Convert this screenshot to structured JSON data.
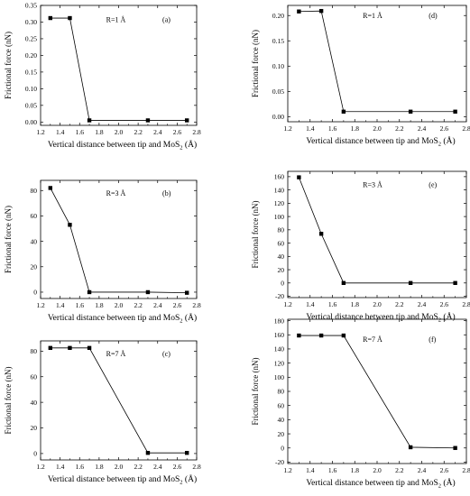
{
  "chart_data": [
    {
      "type": "line",
      "panel": "(a)",
      "annotation": "R=1 Å",
      "x": [
        1.3,
        1.5,
        1.7,
        2.3,
        2.7
      ],
      "series": [
        {
          "values": [
            0.312,
            0.312,
            0.005,
            0.005,
            0.005
          ]
        }
      ],
      "xlim": [
        1.2,
        2.8
      ],
      "ylim": [
        -0.01,
        0.35
      ],
      "xticks": [
        "1.2",
        "1.4",
        "1.6",
        "1.8",
        "2.0",
        "2.2",
        "2.4",
        "2.6",
        "2.8"
      ],
      "yticks": [
        "0.00",
        "0.05",
        "0.10",
        "0.15",
        "0.20",
        "0.25",
        "0.30",
        "0.35"
      ],
      "xlabel": "Vertical distance between tip and MoS",
      "xlabel_sub": "2",
      "xlabel_unit": " (Å)",
      "ylabel": "Frictional force (nN)"
    },
    {
      "type": "line",
      "panel": "(d)",
      "annotation": "R=1 Å",
      "x": [
        1.3,
        1.5,
        1.7,
        2.3,
        2.7
      ],
      "series": [
        {
          "values": [
            0.208,
            0.209,
            0.01,
            0.01,
            0.01
          ]
        }
      ],
      "xlim": [
        1.2,
        2.8
      ],
      "ylim": [
        -0.01,
        0.22
      ],
      "xticks": [
        "1.2",
        "1.4",
        "1.6",
        "1.8",
        "2.0",
        "2.2",
        "2.4",
        "2.6",
        "2.8"
      ],
      "yticks": [
        "0.00",
        "0.05",
        "0.10",
        "0.15",
        "0.20"
      ],
      "xlabel": "Vertical distance between tip and MoS",
      "xlabel_sub": "2",
      "xlabel_unit": " (Å)",
      "ylabel": "Frictional force (nN)"
    },
    {
      "type": "line",
      "panel": "(b)",
      "annotation": "R=3 Å",
      "x": [
        1.3,
        1.5,
        1.7,
        2.3,
        2.7
      ],
      "series": [
        {
          "values": [
            82,
            53,
            0,
            0,
            -0.5
          ]
        }
      ],
      "xlim": [
        1.2,
        2.8
      ],
      "ylim": [
        -5,
        88
      ],
      "xticks": [
        "1.2",
        "1.4",
        "1.6",
        "1.8",
        "2.0",
        "2.2",
        "2.4",
        "2.6",
        "2.8"
      ],
      "yticks": [
        "0",
        "20",
        "40",
        "60",
        "80"
      ],
      "xlabel": "Vertical distance between tip and MoS",
      "xlabel_sub": "2",
      "xlabel_unit": " (Å)",
      "ylabel": "Frictional force (nN)"
    },
    {
      "type": "line",
      "panel": "(e)",
      "annotation": "R=3 Å",
      "x": [
        1.3,
        1.5,
        1.7,
        2.3,
        2.7
      ],
      "series": [
        {
          "values": [
            159,
            74,
            0,
            0,
            0
          ]
        }
      ],
      "xlim": [
        1.2,
        2.8
      ],
      "ylim": [
        -22,
        168
      ],
      "xticks": [
        "1.2",
        "1.4",
        "1.6",
        "1.8",
        "2.0",
        "2.2",
        "2.4",
        "2.6",
        "2.8"
      ],
      "yticks": [
        "-20",
        "0",
        "20",
        "40",
        "60",
        "80",
        "100",
        "120",
        "140",
        "160"
      ],
      "xlabel": "Vertical distance between tip and MoS",
      "xlabel_sub": "2",
      "xlabel_unit": " (Å)",
      "ylabel": "Frictional force (nN)"
    },
    {
      "type": "line",
      "panel": "(c)",
      "annotation": "R=7 Å",
      "x": [
        1.3,
        1.5,
        1.7,
        2.3,
        2.7
      ],
      "series": [
        {
          "values": [
            82.5,
            82.5,
            82.5,
            0.5,
            0.5
          ]
        }
      ],
      "xlim": [
        1.2,
        2.8
      ],
      "ylim": [
        -5,
        88
      ],
      "xticks": [
        "1.2",
        "1.4",
        "1.6",
        "1.8",
        "2.0",
        "2.2",
        "2.4",
        "2.6",
        "2.8"
      ],
      "yticks": [
        "0",
        "20",
        "40",
        "60",
        "80"
      ],
      "xlabel": "Vertical distance between tip and MoS",
      "xlabel_sub": "2",
      "xlabel_unit": " (Å)",
      "ylabel": "Frictional force (nN)"
    },
    {
      "type": "line",
      "panel": "(f)",
      "annotation": "R=7 Å",
      "x": [
        1.3,
        1.5,
        1.7,
        2.3,
        2.7
      ],
      "series": [
        {
          "values": [
            159,
            159,
            159,
            1,
            0
          ]
        }
      ],
      "xlim": [
        1.2,
        2.8
      ],
      "ylim": [
        -22,
        182
      ],
      "xticks": [
        "1.2",
        "1.4",
        "1.6",
        "1.8",
        "2.0",
        "2.2",
        "2.4",
        "2.6",
        "2.8"
      ],
      "yticks": [
        "-20",
        "0",
        "20",
        "40",
        "60",
        "80",
        "100",
        "120",
        "140",
        "160",
        "180"
      ],
      "xlabel": "Vertical distance between tip and MoS",
      "xlabel_sub": "2",
      "xlabel_unit": " (Å)",
      "ylabel": "Frictional force (nN)"
    }
  ]
}
